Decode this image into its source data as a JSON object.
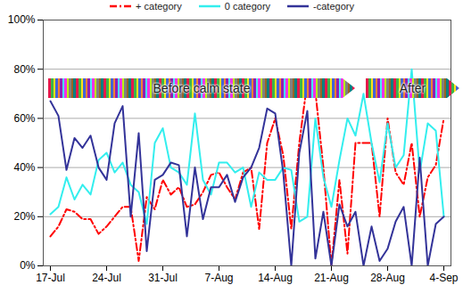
{
  "chart_data": {
    "type": "line",
    "categories": [
      "17-Jul",
      null,
      null,
      null,
      null,
      null,
      null,
      "24-Jul",
      null,
      null,
      null,
      null,
      null,
      null,
      "31-Jul",
      null,
      null,
      null,
      null,
      null,
      null,
      "7-Aug",
      null,
      null,
      null,
      null,
      null,
      null,
      "14-Aug",
      null,
      null,
      null,
      null,
      null,
      null,
      "21-Aug",
      null,
      null,
      null,
      null,
      null,
      null,
      "28-Aug",
      null,
      null,
      null,
      null,
      null,
      null,
      "4-Sep"
    ],
    "series": [
      {
        "name": "+ category",
        "color": "#ff0000",
        "line_style": "dashdot",
        "values": [
          12,
          16,
          23,
          22,
          19,
          19,
          13,
          16,
          20,
          24,
          24,
          2,
          28,
          23,
          35,
          29,
          32,
          24,
          25,
          30,
          37,
          38,
          32,
          27,
          38,
          40,
          15,
          50,
          60,
          45,
          15,
          50,
          75,
          71,
          40,
          0,
          35,
          5,
          50,
          50,
          50,
          20,
          60,
          38,
          33,
          50,
          20,
          36,
          41,
          60
        ]
      },
      {
        "name": "0 category",
        "color": "#33eeee",
        "line_style": "solid",
        "values": [
          21,
          24,
          36,
          27,
          33,
          29,
          43,
          46,
          38,
          42,
          33,
          30,
          17,
          50,
          56,
          40,
          38,
          33,
          62,
          35,
          29,
          42,
          42,
          38,
          40,
          24,
          38,
          35,
          35,
          40,
          39,
          18,
          20,
          60,
          36,
          24,
          43,
          60,
          53,
          70,
          50,
          34,
          58,
          40,
          45,
          80,
          38,
          58,
          55,
          20
        ]
      },
      {
        "name": "-category",
        "color": "#333399",
        "line_style": "solid",
        "values": [
          67,
          61,
          39,
          52,
          48,
          53,
          40,
          35,
          58,
          65,
          20,
          54,
          6,
          35,
          37,
          42,
          41,
          12,
          40,
          19,
          32,
          32,
          37,
          26,
          36,
          40,
          48,
          64,
          62,
          38,
          0,
          46,
          63,
          3,
          22,
          0,
          25,
          16,
          22,
          0,
          16,
          2,
          7,
          18,
          24,
          0,
          44,
          0,
          17,
          20
        ]
      }
    ],
    "ylim": [
      0,
      100
    ],
    "yticks": [
      {
        "value": 0,
        "label": "0%"
      },
      {
        "value": 20,
        "label": "20%"
      },
      {
        "value": 40,
        "label": "40%"
      },
      {
        "value": 60,
        "label": "60%"
      },
      {
        "value": 80,
        "label": "80%"
      },
      {
        "value": 100,
        "label": "100%"
      }
    ],
    "grid": true,
    "legend": "top",
    "annotations": [
      "Before calm state",
      "After"
    ]
  }
}
